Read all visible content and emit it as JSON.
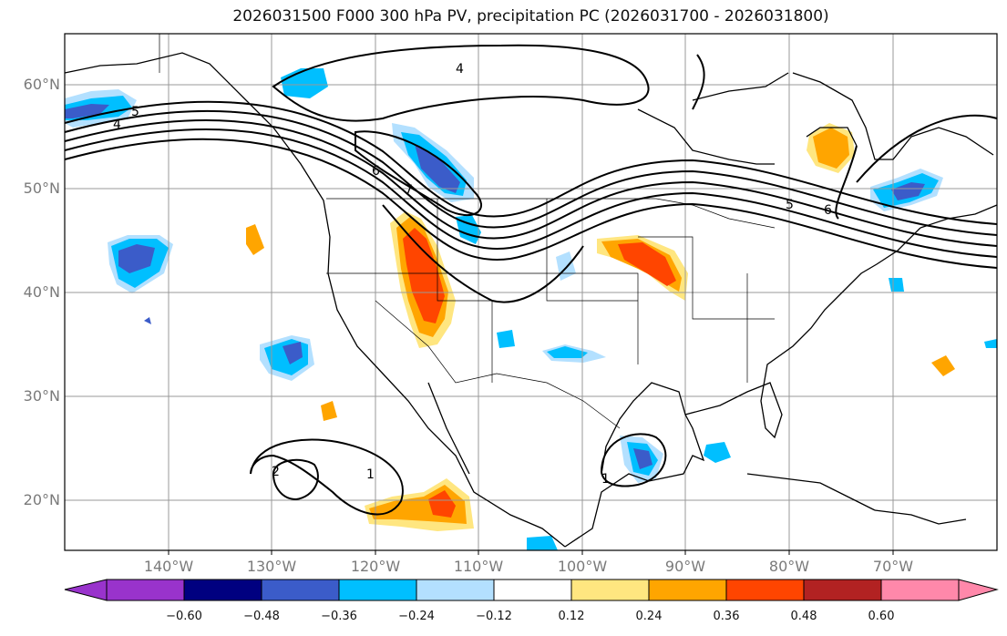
{
  "title": "2026031500 F000 300 hPa PV, precipitation PC (2026031700 - 2026031800)",
  "lat_ticks": [
    "60°N",
    "50°N",
    "40°N",
    "30°N",
    "20°N"
  ],
  "lon_ticks": [
    "140°W",
    "130°W",
    "120°W",
    "110°W",
    "100°W",
    "90°W",
    "80°W",
    "70°W"
  ],
  "contour_labels": [
    "4",
    "5",
    "6",
    "7",
    "2",
    "1",
    "5",
    "6",
    "1",
    "4"
  ],
  "colorbar": {
    "ticks": [
      "−0.60",
      "−0.48",
      "−0.36",
      "−0.24",
      "−0.12",
      "0.12",
      "0.24",
      "0.36",
      "0.48",
      "0.60"
    ],
    "colors": [
      "#9933cc",
      "#000080",
      "#3b5cc9",
      "#00bfff",
      "#b3e0ff",
      "#ffffff",
      "#ffe680",
      "#ffa500",
      "#ff4500",
      "#b22222",
      "#ff88aa"
    ]
  }
}
